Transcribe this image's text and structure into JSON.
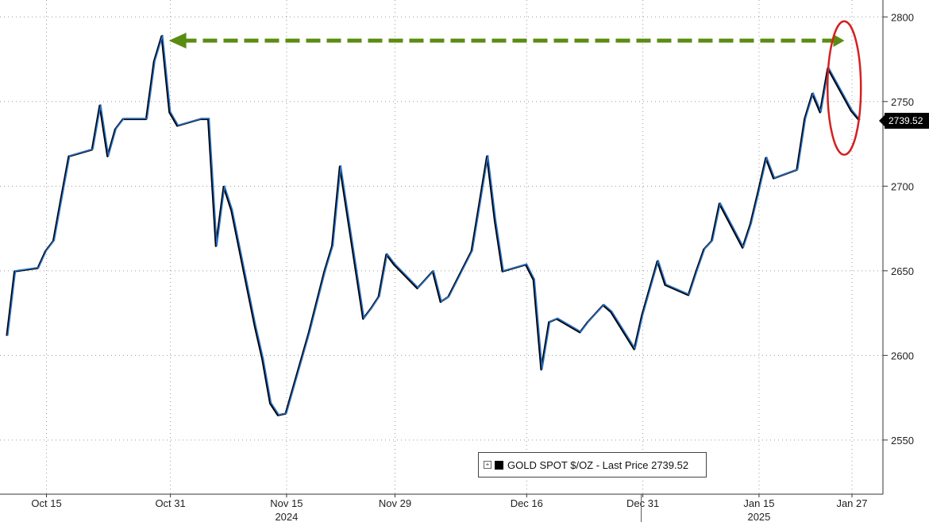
{
  "chart_data": {
    "type": "line",
    "title": "",
    "xlabel": "",
    "ylabel": "",
    "series": [
      {
        "name": "GOLD SPOT $/OZ",
        "x": [
          "2024-10-10",
          "2024-10-11",
          "2024-10-14",
          "2024-10-15",
          "2024-10-16",
          "2024-10-17",
          "2024-10-18",
          "2024-10-21",
          "2024-10-22",
          "2024-10-23",
          "2024-10-24",
          "2024-10-25",
          "2024-10-28",
          "2024-10-29",
          "2024-10-30",
          "2024-10-31",
          "2024-11-01",
          "2024-11-04",
          "2024-11-05",
          "2024-11-06",
          "2024-11-07",
          "2024-11-08",
          "2024-11-11",
          "2024-11-12",
          "2024-11-13",
          "2024-11-14",
          "2024-11-15",
          "2024-11-18",
          "2024-11-19",
          "2024-11-20",
          "2024-11-21",
          "2024-11-22",
          "2024-11-25",
          "2024-11-26",
          "2024-11-27",
          "2024-11-28",
          "2024-11-29",
          "2024-12-02",
          "2024-12-03",
          "2024-12-04",
          "2024-12-05",
          "2024-12-06",
          "2024-12-09",
          "2024-12-10",
          "2024-12-11",
          "2024-12-12",
          "2024-12-13",
          "2024-12-16",
          "2024-12-17",
          "2024-12-18",
          "2024-12-19",
          "2024-12-20",
          "2024-12-23",
          "2024-12-24",
          "2024-12-26",
          "2024-12-27",
          "2024-12-30",
          "2024-12-31",
          "2025-01-02",
          "2025-01-03",
          "2025-01-06",
          "2025-01-07",
          "2025-01-08",
          "2025-01-09",
          "2025-01-10",
          "2025-01-13",
          "2025-01-14",
          "2025-01-15",
          "2025-01-16",
          "2025-01-17",
          "2025-01-20",
          "2025-01-21",
          "2025-01-22",
          "2025-01-23",
          "2025-01-24",
          "2025-01-27",
          "2025-01-28"
        ],
        "values": [
          2612,
          2650,
          2652,
          2662,
          2668,
          2693,
          2718,
          2722,
          2748,
          2718,
          2734,
          2740,
          2740,
          2774,
          2789,
          2744,
          2736,
          2740,
          2740,
          2665,
          2700,
          2686,
          2618,
          2598,
          2572,
          2565,
          2566,
          2614,
          2632,
          2650,
          2665,
          2712,
          2622,
          2628,
          2635,
          2660,
          2654,
          2640,
          2645,
          2650,
          2632,
          2635,
          2662,
          2690,
          2718,
          2680,
          2650,
          2654,
          2645,
          2592,
          2620,
          2622,
          2614,
          2620,
          2630,
          2626,
          2604,
          2624,
          2656,
          2642,
          2636,
          2650,
          2663,
          2668,
          2690,
          2664,
          2678,
          2697,
          2717,
          2705,
          2710,
          2740,
          2755,
          2744,
          2770,
          2745,
          2739.52
        ]
      }
    ],
    "xlim": [
      "2024-10-09",
      "2025-01-31"
    ],
    "ylim": [
      2518,
      2810
    ],
    "yticks": [
      2550,
      2600,
      2650,
      2700,
      2750,
      2800
    ],
    "xticks": [
      {
        "date": "2024-10-15",
        "label": "Oct 15"
      },
      {
        "date": "2024-10-31",
        "label": "Oct 31"
      },
      {
        "date": "2024-11-15",
        "label": "Nov 15"
      },
      {
        "date": "2024-11-29",
        "label": "Nov 29"
      },
      {
        "date": "2024-12-16",
        "label": "Dec 16"
      },
      {
        "date": "2024-12-31",
        "label": "Dec 31"
      },
      {
        "date": "2025-01-15",
        "label": "Jan 15"
      },
      {
        "date": "2025-01-27",
        "label": "Jan 27"
      }
    ],
    "years": [
      {
        "date": "2024-11-15",
        "label": "2024"
      },
      {
        "date": "2025-01-15",
        "label": "2025"
      }
    ],
    "grid": true,
    "y_axis_side": "right",
    "line_colors": {
      "price": "#2a6fc4",
      "shadow": "#000000"
    },
    "annotations": {
      "arrow": {
        "from": "2025-01-25",
        "to": "2024-10-31",
        "y": 2786,
        "color": "#5b8c12"
      },
      "ellipse": {
        "center_date": "2025-01-26",
        "center_y": 2758,
        "color": "#d42020"
      },
      "last_price_tag": "2739.52"
    },
    "legend": {
      "placement": "bottom-center",
      "text": "GOLD SPOT $/OZ - Last Price 2739.52"
    }
  }
}
